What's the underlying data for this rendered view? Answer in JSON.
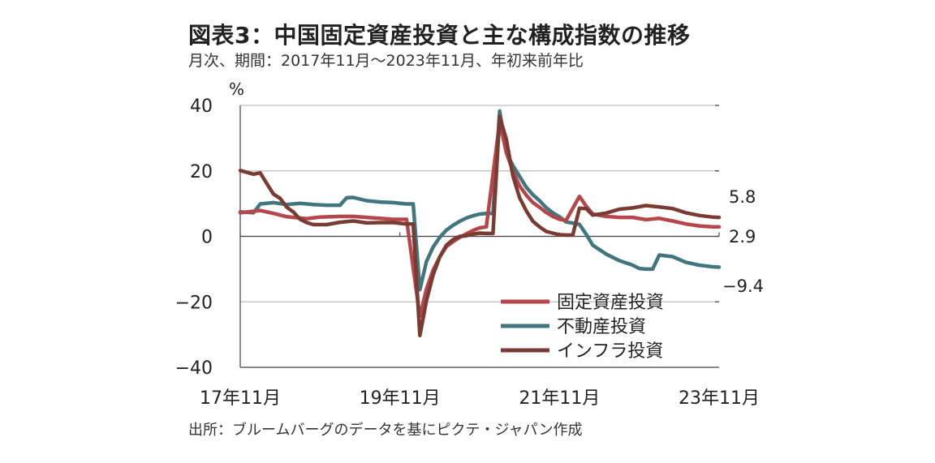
{
  "header": {
    "title": "図表3：中国固定資産投資と主な構成指数の推移",
    "subtitle": "月次、期間：2017年11月～2023年11月、年初来前年比"
  },
  "footer": {
    "source": "出所：ブルームバーグのデータを基にピクテ・ジャパン作成"
  },
  "chart_data": {
    "type": "line",
    "ylabel": "%",
    "ylim": [
      -40,
      40
    ],
    "yticks": [
      40,
      20,
      0,
      -20,
      -40
    ],
    "y_tick_labels": [
      "40",
      "20",
      "0",
      "−20",
      "−40"
    ],
    "x_range": [
      "2017-11",
      "2023-11"
    ],
    "x_tick_labels": [
      {
        "label": "17年11月",
        "date": "2017-11"
      },
      {
        "label": "19年11月",
        "date": "2019-11"
      },
      {
        "label": "21年11月",
        "date": "2021-11"
      },
      {
        "label": "23年11月",
        "date": "2023-11"
      }
    ],
    "grid": true,
    "legend_position": "bottom-right",
    "end_labels": [
      {
        "text": "5.8",
        "value": 5.8
      },
      {
        "text": "2.9",
        "value": 2.9
      },
      {
        "text": "−9.4",
        "value": -9.4
      }
    ],
    "series": [
      {
        "name": "固定資産投資",
        "color": "#b5474b",
        "points": [
          [
            "2017-11",
            7.2
          ],
          [
            "2018-02",
            7.9
          ],
          [
            "2018-04",
            7.0
          ],
          [
            "2018-06",
            6.0
          ],
          [
            "2018-09",
            5.4
          ],
          [
            "2018-11",
            5.9
          ],
          [
            "2019-02",
            6.1
          ],
          [
            "2019-04",
            6.1
          ],
          [
            "2019-06",
            5.8
          ],
          [
            "2019-08",
            5.5
          ],
          [
            "2019-10",
            5.2
          ],
          [
            "2019-12",
            5.2
          ],
          [
            "2020-02",
            -24.5
          ],
          [
            "2020-03",
            -16.1
          ],
          [
            "2020-04",
            -10.3
          ],
          [
            "2020-05",
            -6.3
          ],
          [
            "2020-06",
            -3.1
          ],
          [
            "2020-07",
            -1.6
          ],
          [
            "2020-08",
            -0.3
          ],
          [
            "2020-09",
            0.8
          ],
          [
            "2020-10",
            1.8
          ],
          [
            "2020-11",
            2.6
          ],
          [
            "2020-12",
            2.9
          ],
          [
            "2021-02",
            35.0
          ],
          [
            "2021-03",
            25.6
          ],
          [
            "2021-04",
            19.9
          ],
          [
            "2021-05",
            15.4
          ],
          [
            "2021-06",
            12.6
          ],
          [
            "2021-07",
            10.3
          ],
          [
            "2021-08",
            8.9
          ],
          [
            "2021-09",
            7.3
          ],
          [
            "2021-10",
            6.1
          ],
          [
            "2021-11",
            5.2
          ],
          [
            "2021-12",
            4.9
          ],
          [
            "2022-02",
            12.2
          ],
          [
            "2022-03",
            9.3
          ],
          [
            "2022-04",
            6.8
          ],
          [
            "2022-06",
            6.1
          ],
          [
            "2022-08",
            5.8
          ],
          [
            "2022-10",
            5.8
          ],
          [
            "2022-12",
            5.1
          ],
          [
            "2023-02",
            5.5
          ],
          [
            "2023-04",
            4.7
          ],
          [
            "2023-06",
            3.8
          ],
          [
            "2023-08",
            3.2
          ],
          [
            "2023-10",
            2.9
          ],
          [
            "2023-11",
            2.9
          ]
        ]
      },
      {
        "name": "不動産投資",
        "color": "#41767f",
        "points": [
          [
            "2017-11",
            7.5
          ],
          [
            "2018-01",
            7.2
          ],
          [
            "2018-02",
            9.9
          ],
          [
            "2018-04",
            10.3
          ],
          [
            "2018-06",
            9.7
          ],
          [
            "2018-08",
            10.1
          ],
          [
            "2018-10",
            9.7
          ],
          [
            "2018-12",
            9.5
          ],
          [
            "2019-02",
            9.5
          ],
          [
            "2019-03",
            11.8
          ],
          [
            "2019-04",
            11.9
          ],
          [
            "2019-06",
            10.9
          ],
          [
            "2019-08",
            10.5
          ],
          [
            "2019-10",
            10.3
          ],
          [
            "2019-12",
            9.9
          ],
          [
            "2020-01",
            9.9
          ],
          [
            "2020-02",
            -16.3
          ],
          [
            "2020-03",
            -7.7
          ],
          [
            "2020-04",
            -3.3
          ],
          [
            "2020-05",
            -0.3
          ],
          [
            "2020-06",
            1.9
          ],
          [
            "2020-07",
            3.4
          ],
          [
            "2020-08",
            4.6
          ],
          [
            "2020-09",
            5.6
          ],
          [
            "2020-10",
            6.3
          ],
          [
            "2020-11",
            6.8
          ],
          [
            "2020-12",
            7.0
          ],
          [
            "2021-01",
            7.0
          ],
          [
            "2021-02",
            38.3
          ],
          [
            "2021-03",
            25.6
          ],
          [
            "2021-04",
            21.6
          ],
          [
            "2021-05",
            18.3
          ],
          [
            "2021-06",
            15.0
          ],
          [
            "2021-07",
            12.7
          ],
          [
            "2021-08",
            10.9
          ],
          [
            "2021-09",
            8.8
          ],
          [
            "2021-10",
            7.2
          ],
          [
            "2021-11",
            6.0
          ],
          [
            "2021-12",
            4.4
          ],
          [
            "2022-02",
            3.7
          ],
          [
            "2022-03",
            0.7
          ],
          [
            "2022-04",
            -2.7
          ],
          [
            "2022-06",
            -5.4
          ],
          [
            "2022-08",
            -7.4
          ],
          [
            "2022-10",
            -8.8
          ],
          [
            "2022-11",
            -9.8
          ],
          [
            "2022-12",
            -10.0
          ],
          [
            "2023-01",
            -10.0
          ],
          [
            "2023-02",
            -5.7
          ],
          [
            "2023-04",
            -6.2
          ],
          [
            "2023-06",
            -7.9
          ],
          [
            "2023-08",
            -8.8
          ],
          [
            "2023-10",
            -9.3
          ],
          [
            "2023-11",
            -9.4
          ]
        ]
      },
      {
        "name": "インフラ投資",
        "color": "#7a3b33",
        "points": [
          [
            "2017-11",
            20.1
          ],
          [
            "2018-01",
            19.0
          ],
          [
            "2018-02",
            19.4
          ],
          [
            "2018-03",
            16.1
          ],
          [
            "2018-04",
            12.9
          ],
          [
            "2018-05",
            11.6
          ],
          [
            "2018-06",
            8.9
          ],
          [
            "2018-07",
            7.4
          ],
          [
            "2018-08",
            5.2
          ],
          [
            "2018-09",
            4.2
          ],
          [
            "2018-10",
            3.6
          ],
          [
            "2018-12",
            3.6
          ],
          [
            "2019-02",
            4.3
          ],
          [
            "2019-04",
            4.7
          ],
          [
            "2019-06",
            4.1
          ],
          [
            "2019-08",
            4.2
          ],
          [
            "2019-10",
            4.2
          ],
          [
            "2019-12",
            3.8
          ],
          [
            "2020-01",
            3.8
          ],
          [
            "2020-02",
            -30.3
          ],
          [
            "2020-03",
            -19.7
          ],
          [
            "2020-04",
            -11.8
          ],
          [
            "2020-05",
            -6.3
          ],
          [
            "2020-06",
            -2.7
          ],
          [
            "2020-07",
            -1.0
          ],
          [
            "2020-08",
            0.0
          ],
          [
            "2020-09",
            0.2
          ],
          [
            "2020-10",
            0.7
          ],
          [
            "2020-11",
            1.0
          ],
          [
            "2020-12",
            0.9
          ],
          [
            "2021-01",
            0.9
          ],
          [
            "2021-02",
            36.6
          ],
          [
            "2021-03",
            29.7
          ],
          [
            "2021-04",
            18.4
          ],
          [
            "2021-05",
            11.8
          ],
          [
            "2021-06",
            7.8
          ],
          [
            "2021-07",
            4.6
          ],
          [
            "2021-08",
            2.9
          ],
          [
            "2021-09",
            1.5
          ],
          [
            "2021-10",
            1.0
          ],
          [
            "2021-11",
            0.5
          ],
          [
            "2021-12",
            0.4
          ],
          [
            "2022-01",
            0.4
          ],
          [
            "2022-02",
            8.6
          ],
          [
            "2022-03",
            8.5
          ],
          [
            "2022-04",
            6.5
          ],
          [
            "2022-06",
            7.1
          ],
          [
            "2022-08",
            8.3
          ],
          [
            "2022-10",
            8.7
          ],
          [
            "2022-12",
            9.4
          ],
          [
            "2023-02",
            9.0
          ],
          [
            "2023-04",
            8.5
          ],
          [
            "2023-06",
            7.2
          ],
          [
            "2023-08",
            6.4
          ],
          [
            "2023-10",
            5.9
          ],
          [
            "2023-11",
            5.8
          ]
        ]
      }
    ]
  }
}
